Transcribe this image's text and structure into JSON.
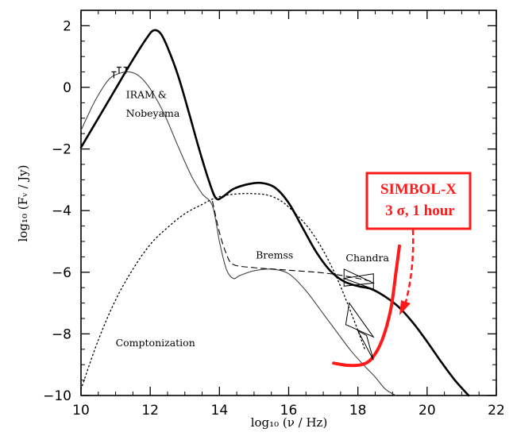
{
  "chart_data": {
    "type": "line",
    "xlabel": "log₁₀ (ν / Hz)",
    "ylabel": "log₁₀ (Fᵥ / Jy)",
    "xlim": [
      10,
      22
    ],
    "ylim": [
      -10,
      2.5
    ],
    "x_ticks": [
      "10",
      "12",
      "14",
      "16",
      "18",
      "20",
      "22"
    ],
    "y_ticks": [
      "2",
      "0",
      "−2",
      "−4",
      "−6",
      "−8",
      "−10"
    ],
    "series": [
      {
        "style": "thick-solid",
        "color": "#000000",
        "x": [
          10.0,
          10.5,
          11.0,
          11.5,
          11.9,
          12.1,
          12.3,
          12.5,
          12.8,
          13.1,
          13.4,
          13.7,
          13.9,
          14.1,
          14.4,
          14.8,
          15.2,
          15.6,
          16.0,
          16.4,
          16.8,
          17.2,
          17.6,
          18.0,
          18.4,
          18.8,
          19.2,
          19.6,
          20.0,
          20.4,
          20.8,
          21.2
        ],
        "y": [
          -1.95,
          -1.0,
          -0.05,
          0.9,
          1.6,
          1.85,
          1.75,
          1.3,
          0.4,
          -0.75,
          -1.95,
          -3.05,
          -3.6,
          -3.55,
          -3.3,
          -3.15,
          -3.1,
          -3.25,
          -3.75,
          -4.55,
          -5.35,
          -5.95,
          -6.3,
          -6.45,
          -6.55,
          -6.8,
          -7.15,
          -7.65,
          -8.25,
          -8.9,
          -9.5,
          -10.0
        ]
      },
      {
        "style": "thin-solid",
        "color": "#444444",
        "x": [
          10.0,
          10.4,
          10.8,
          11.1,
          11.4,
          11.7,
          12.0,
          12.4,
          12.8,
          13.2,
          13.5,
          13.8,
          14.0,
          14.2,
          14.4,
          14.6,
          15.0,
          15.5,
          16.0,
          16.5,
          17.0,
          17.4,
          17.8,
          18.2,
          18.5,
          18.8,
          19.1
        ],
        "y": [
          -1.4,
          -0.45,
          0.25,
          0.45,
          0.5,
          0.35,
          -0.05,
          -0.85,
          -1.9,
          -2.9,
          -3.45,
          -3.85,
          -5.0,
          -5.9,
          -6.2,
          -6.1,
          -5.95,
          -5.9,
          -6.05,
          -6.6,
          -7.35,
          -7.95,
          -8.55,
          -9.05,
          -9.4,
          -9.8,
          -10.0
        ]
      },
      {
        "style": "dotted",
        "color": "#000000",
        "name": "Comptonization",
        "x": [
          10.0,
          10.5,
          11.0,
          11.5,
          12.0,
          12.5,
          13.0,
          13.5,
          13.85,
          14.2,
          14.6,
          15.0,
          15.4,
          15.8,
          16.2,
          16.6,
          17.0,
          17.4,
          17.8,
          18.2
        ],
        "y": [
          -9.8,
          -8.2,
          -6.9,
          -5.9,
          -5.1,
          -4.55,
          -4.1,
          -3.8,
          -3.6,
          -3.5,
          -3.45,
          -3.45,
          -3.5,
          -3.7,
          -4.1,
          -4.6,
          -5.3,
          -6.2,
          -7.3,
          -8.5
        ]
      },
      {
        "style": "dashed",
        "color": "#000000",
        "name": "Bremss",
        "x": [
          13.8,
          14.0,
          14.2,
          14.4,
          15.0,
          15.6,
          16.2,
          16.8,
          17.4,
          18.0,
          18.4
        ],
        "y": [
          -3.7,
          -4.7,
          -5.4,
          -5.75,
          -5.85,
          -5.9,
          -5.95,
          -6.0,
          -6.08,
          -6.2,
          -6.3
        ]
      },
      {
        "style": "red-sensitivity",
        "color": "#ff1a1a",
        "name": "SIMBOL-X 3 σ, 1 hour",
        "x": [
          17.3,
          17.7,
          18.1,
          18.4,
          18.7,
          18.95,
          19.1,
          19.2
        ],
        "y": [
          -8.95,
          -9.02,
          -9.0,
          -8.8,
          -8.2,
          -7.2,
          -6.0,
          -5.15
        ]
      }
    ],
    "annotations": [
      {
        "text": "IRAM &",
        "x": 11.3,
        "y": -0.35
      },
      {
        "text": "Nobeyama",
        "x": 11.3,
        "y": -0.95
      },
      {
        "text": "Bremss",
        "x": 15.05,
        "y": -5.55
      },
      {
        "text": "Chandra",
        "x": 17.65,
        "y": -5.65
      },
      {
        "text": "Comptonization",
        "x": 11.0,
        "y": -8.4
      }
    ],
    "simbol_box": {
      "line1": "SIMBOL-X",
      "line2": "3 σ, 1 hour"
    }
  }
}
